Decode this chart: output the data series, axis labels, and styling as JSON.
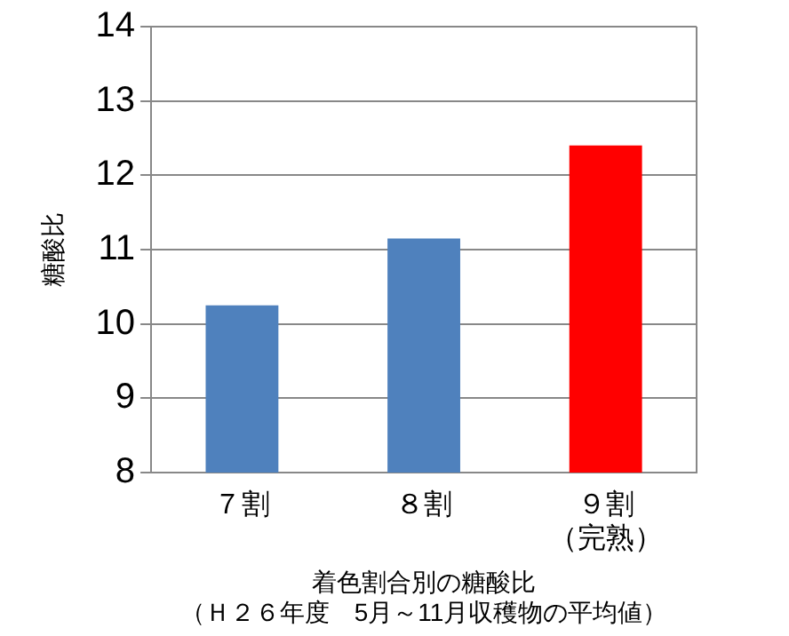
{
  "chart_data": {
    "type": "bar",
    "xlabel": "着色割合別の糖酸比",
    "annotations": [
      "（Ｈ２６年度　5月～11月収穫物の平均値）"
    ],
    "ylabel": "糖酸比",
    "categories": [
      "７割",
      "８割",
      "９割（完熟）"
    ],
    "values": [
      10.25,
      11.15,
      12.4
    ],
    "colors": [
      "#4f81bd",
      "#4f81bd",
      "#ff0000"
    ],
    "ylim": [
      8,
      14
    ],
    "yticks": [
      8,
      9,
      10,
      11,
      12,
      13,
      14
    ],
    "grid": "y",
    "legend": false
  }
}
